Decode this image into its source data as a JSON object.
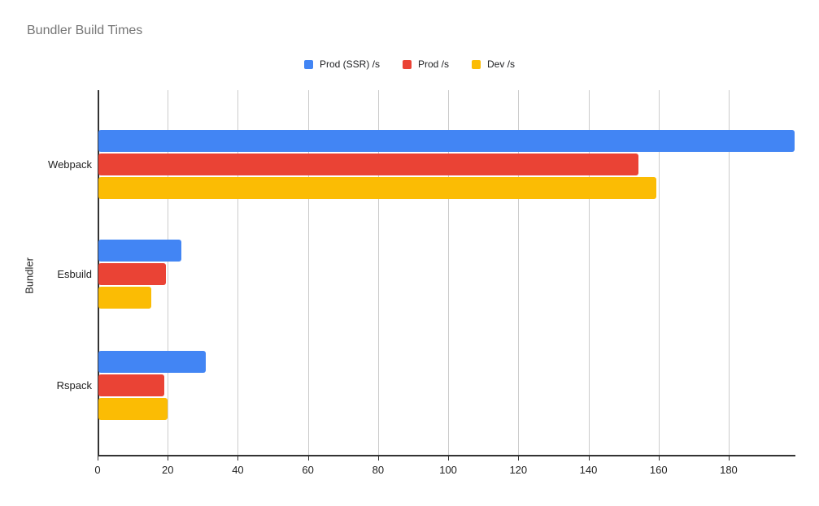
{
  "chart_data": {
    "type": "bar",
    "orientation": "horizontal",
    "title": "Bundler Build Times",
    "xlabel": "",
    "ylabel": "Bundler",
    "categories": [
      "Webpack",
      "Esbuild",
      "Rspack"
    ],
    "series": [
      {
        "name": "Prod (SSR) /s",
        "color": "#4285F4",
        "values": [
          198.7,
          23.8,
          30.8
        ]
      },
      {
        "name": "Prod /s",
        "color": "#EA4335",
        "values": [
          154.3,
          19.5,
          19.1
        ]
      },
      {
        "name": "Dev /s",
        "color": "#FBBC04",
        "values": [
          159.4,
          15.2,
          19.9
        ]
      }
    ],
    "x_axis": {
      "min": 0,
      "max": 198.8,
      "tick_interval": 20,
      "ticks": [
        0,
        20,
        40,
        60,
        80,
        100,
        120,
        140,
        160,
        180
      ]
    },
    "legend_position": "top-center",
    "grid": true
  },
  "colors": {
    "background": "#ffffff",
    "title": "#757575",
    "axis_line": "#333333",
    "gridline": "#cccccc",
    "label": "#222222",
    "series_blue": "#4285F4",
    "series_red": "#EA4335",
    "series_yellow": "#FBBC04"
  }
}
